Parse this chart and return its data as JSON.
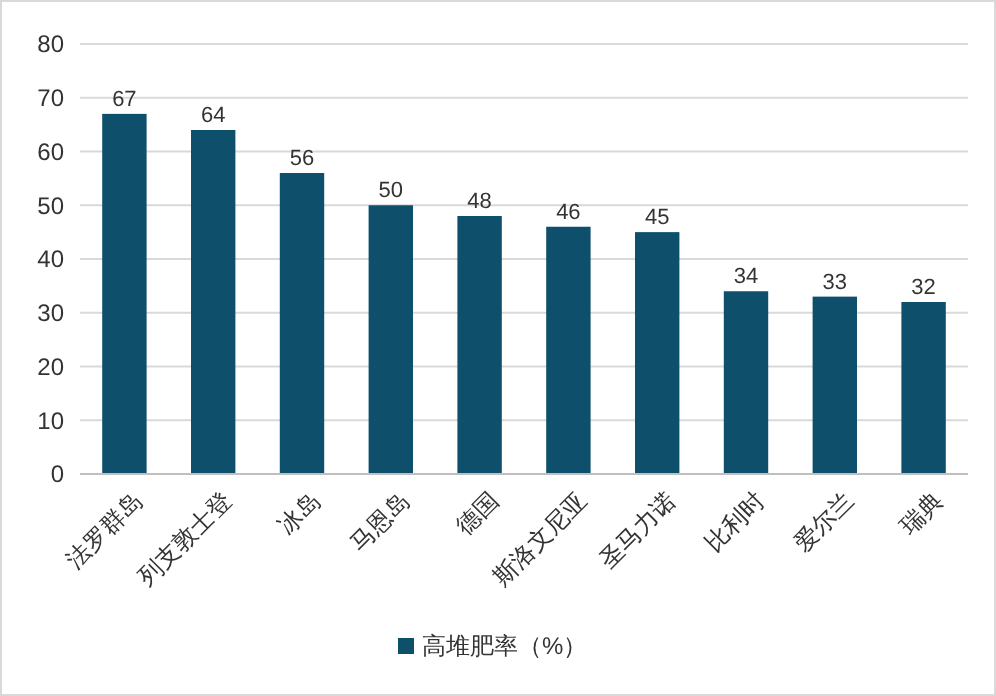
{
  "chart_data": {
    "type": "bar",
    "categories": [
      "法罗群岛",
      "列支敦士登",
      "冰岛",
      "马恩岛",
      "德国",
      "斯洛文尼亚",
      "圣马力诺",
      "比利时",
      "爱尔兰",
      "瑞典"
    ],
    "series": [
      {
        "name": "高堆肥率（%）",
        "color": "#0e4f6b",
        "values": [
          67,
          64,
          56,
          50,
          48,
          46,
          45,
          34,
          33,
          32
        ]
      }
    ],
    "ylim": [
      0,
      80
    ],
    "yticks": [
      0,
      10,
      20,
      30,
      40,
      50,
      60,
      70,
      80
    ],
    "grid": "y",
    "legend": "bottom",
    "data_labels": true
  }
}
